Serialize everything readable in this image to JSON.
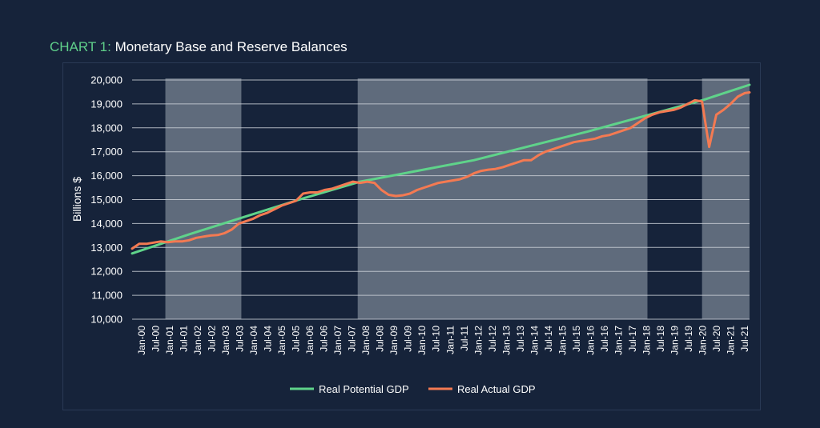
{
  "header": {
    "title_prefix": "CHART 1:",
    "title_text": "Monetary Base and Reserve Balances"
  },
  "colors": {
    "background": "#16233a",
    "grid": "#c9ced6",
    "shade": "#5f6b7c",
    "potential": "#5fd38a",
    "actual": "#f47a52",
    "title_prefix": "#5fcf8a"
  },
  "chart_data": {
    "type": "line",
    "ylabel": "Billions $",
    "xlabel": "",
    "ylim": [
      10000,
      20000
    ],
    "yticks": [
      "10,000",
      "11,000",
      "12,000",
      "13,000",
      "14,000",
      "15,000",
      "16,000",
      "17,000",
      "18,000",
      "19,000",
      "20,000"
    ],
    "ytick_values": [
      10000,
      11000,
      12000,
      13000,
      14000,
      15000,
      16000,
      17000,
      18000,
      19000,
      20000
    ],
    "xlim": [
      "2000-01",
      "2021-09"
    ],
    "xticks": [
      "Jan-00",
      "Jul-00",
      "Jan-01",
      "Jul-01",
      "Jan-02",
      "Jul-02",
      "Jan-03",
      "Jul-03",
      "Jan-04",
      "Jul-04",
      "Jan-05",
      "Jul-05",
      "Jan-06",
      "Jul-06",
      "Jan-07",
      "Jul-07",
      "Jan-08",
      "Jul-08",
      "Jan-09",
      "Jul-09",
      "Jan-10",
      "Jul-10",
      "Jan-11",
      "Jul-11",
      "Jan-12",
      "Jul-12",
      "Jan-13",
      "Jul-13",
      "Jan-14",
      "Jul-14",
      "Jan-15",
      "Jul-15",
      "Jan-16",
      "Jul-16",
      "Jan-17",
      "Jul-17",
      "Jan-18",
      "Jul-18",
      "Jan-19",
      "Jul-19",
      "Jan-20",
      "Jul-20",
      "Jan-21",
      "Jul-21"
    ],
    "shaded_periods": [
      {
        "start": "2001-03",
        "end": "2003-11"
      },
      {
        "start": "2007-12",
        "end": "2018-02"
      },
      {
        "start": "2020-01",
        "end": "2021-09"
      }
    ],
    "grid": true,
    "legend": "bottom-center",
    "series": [
      {
        "name": "Real Potential GDP",
        "points": [
          [
            "2000-01",
            12750
          ],
          [
            "2002-01",
            13550
          ],
          [
            "2004-01",
            14300
          ],
          [
            "2006-01",
            15050
          ],
          [
            "2008-01",
            15750
          ],
          [
            "2010-01",
            16200
          ],
          [
            "2012-01",
            16650
          ],
          [
            "2014-01",
            17250
          ],
          [
            "2016-01",
            17850
          ],
          [
            "2018-01",
            18500
          ],
          [
            "2020-01",
            19150
          ],
          [
            "2021-09",
            19800
          ]
        ]
      },
      {
        "name": "Real Actual GDP",
        "points": [
          [
            "2000-01",
            12950
          ],
          [
            "2000-04",
            13150
          ],
          [
            "2000-07",
            13150
          ],
          [
            "2000-10",
            13200
          ],
          [
            "2001-01",
            13250
          ],
          [
            "2001-04",
            13220
          ],
          [
            "2001-07",
            13250
          ],
          [
            "2001-10",
            13250
          ],
          [
            "2002-01",
            13300
          ],
          [
            "2002-04",
            13400
          ],
          [
            "2002-07",
            13450
          ],
          [
            "2002-10",
            13500
          ],
          [
            "2003-01",
            13520
          ],
          [
            "2003-04",
            13600
          ],
          [
            "2003-07",
            13750
          ],
          [
            "2003-10",
            14000
          ],
          [
            "2004-01",
            14100
          ],
          [
            "2004-04",
            14200
          ],
          [
            "2004-07",
            14350
          ],
          [
            "2004-10",
            14450
          ],
          [
            "2005-01",
            14600
          ],
          [
            "2005-04",
            14750
          ],
          [
            "2005-07",
            14850
          ],
          [
            "2005-10",
            14950
          ],
          [
            "2006-01",
            15250
          ],
          [
            "2006-04",
            15300
          ],
          [
            "2006-07",
            15300
          ],
          [
            "2006-10",
            15400
          ],
          [
            "2007-01",
            15450
          ],
          [
            "2007-04",
            15550
          ],
          [
            "2007-07",
            15650
          ],
          [
            "2007-10",
            15750
          ],
          [
            "2008-01",
            15700
          ],
          [
            "2008-04",
            15750
          ],
          [
            "2008-07",
            15700
          ],
          [
            "2008-10",
            15400
          ],
          [
            "2009-01",
            15200
          ],
          [
            "2009-04",
            15150
          ],
          [
            "2009-07",
            15180
          ],
          [
            "2009-10",
            15250
          ],
          [
            "2010-01",
            15400
          ],
          [
            "2010-04",
            15500
          ],
          [
            "2010-07",
            15600
          ],
          [
            "2010-10",
            15700
          ],
          [
            "2011-01",
            15750
          ],
          [
            "2011-04",
            15800
          ],
          [
            "2011-07",
            15850
          ],
          [
            "2011-10",
            15950
          ],
          [
            "2012-01",
            16100
          ],
          [
            "2012-04",
            16200
          ],
          [
            "2012-07",
            16250
          ],
          [
            "2012-10",
            16280
          ],
          [
            "2013-01",
            16350
          ],
          [
            "2013-04",
            16450
          ],
          [
            "2013-07",
            16550
          ],
          [
            "2013-10",
            16650
          ],
          [
            "2014-01",
            16650
          ],
          [
            "2014-04",
            16850
          ],
          [
            "2014-07",
            17000
          ],
          [
            "2014-10",
            17100
          ],
          [
            "2015-01",
            17200
          ],
          [
            "2015-04",
            17300
          ],
          [
            "2015-07",
            17400
          ],
          [
            "2015-10",
            17450
          ],
          [
            "2016-01",
            17500
          ],
          [
            "2016-04",
            17550
          ],
          [
            "2016-07",
            17650
          ],
          [
            "2016-10",
            17700
          ],
          [
            "2017-01",
            17800
          ],
          [
            "2017-04",
            17900
          ],
          [
            "2017-07",
            18000
          ],
          [
            "2017-10",
            18200
          ],
          [
            "2018-01",
            18400
          ],
          [
            "2018-04",
            18550
          ],
          [
            "2018-07",
            18650
          ],
          [
            "2018-10",
            18700
          ],
          [
            "2019-01",
            18750
          ],
          [
            "2019-04",
            18850
          ],
          [
            "2019-07",
            19000
          ],
          [
            "2019-10",
            19150
          ],
          [
            "2020-01",
            19100
          ],
          [
            "2020-04",
            17200
          ],
          [
            "2020-07",
            18550
          ],
          [
            "2020-10",
            18750
          ],
          [
            "2021-01",
            19000
          ],
          [
            "2021-04",
            19300
          ],
          [
            "2021-07",
            19450
          ],
          [
            "2021-09",
            19480
          ]
        ]
      }
    ]
  }
}
